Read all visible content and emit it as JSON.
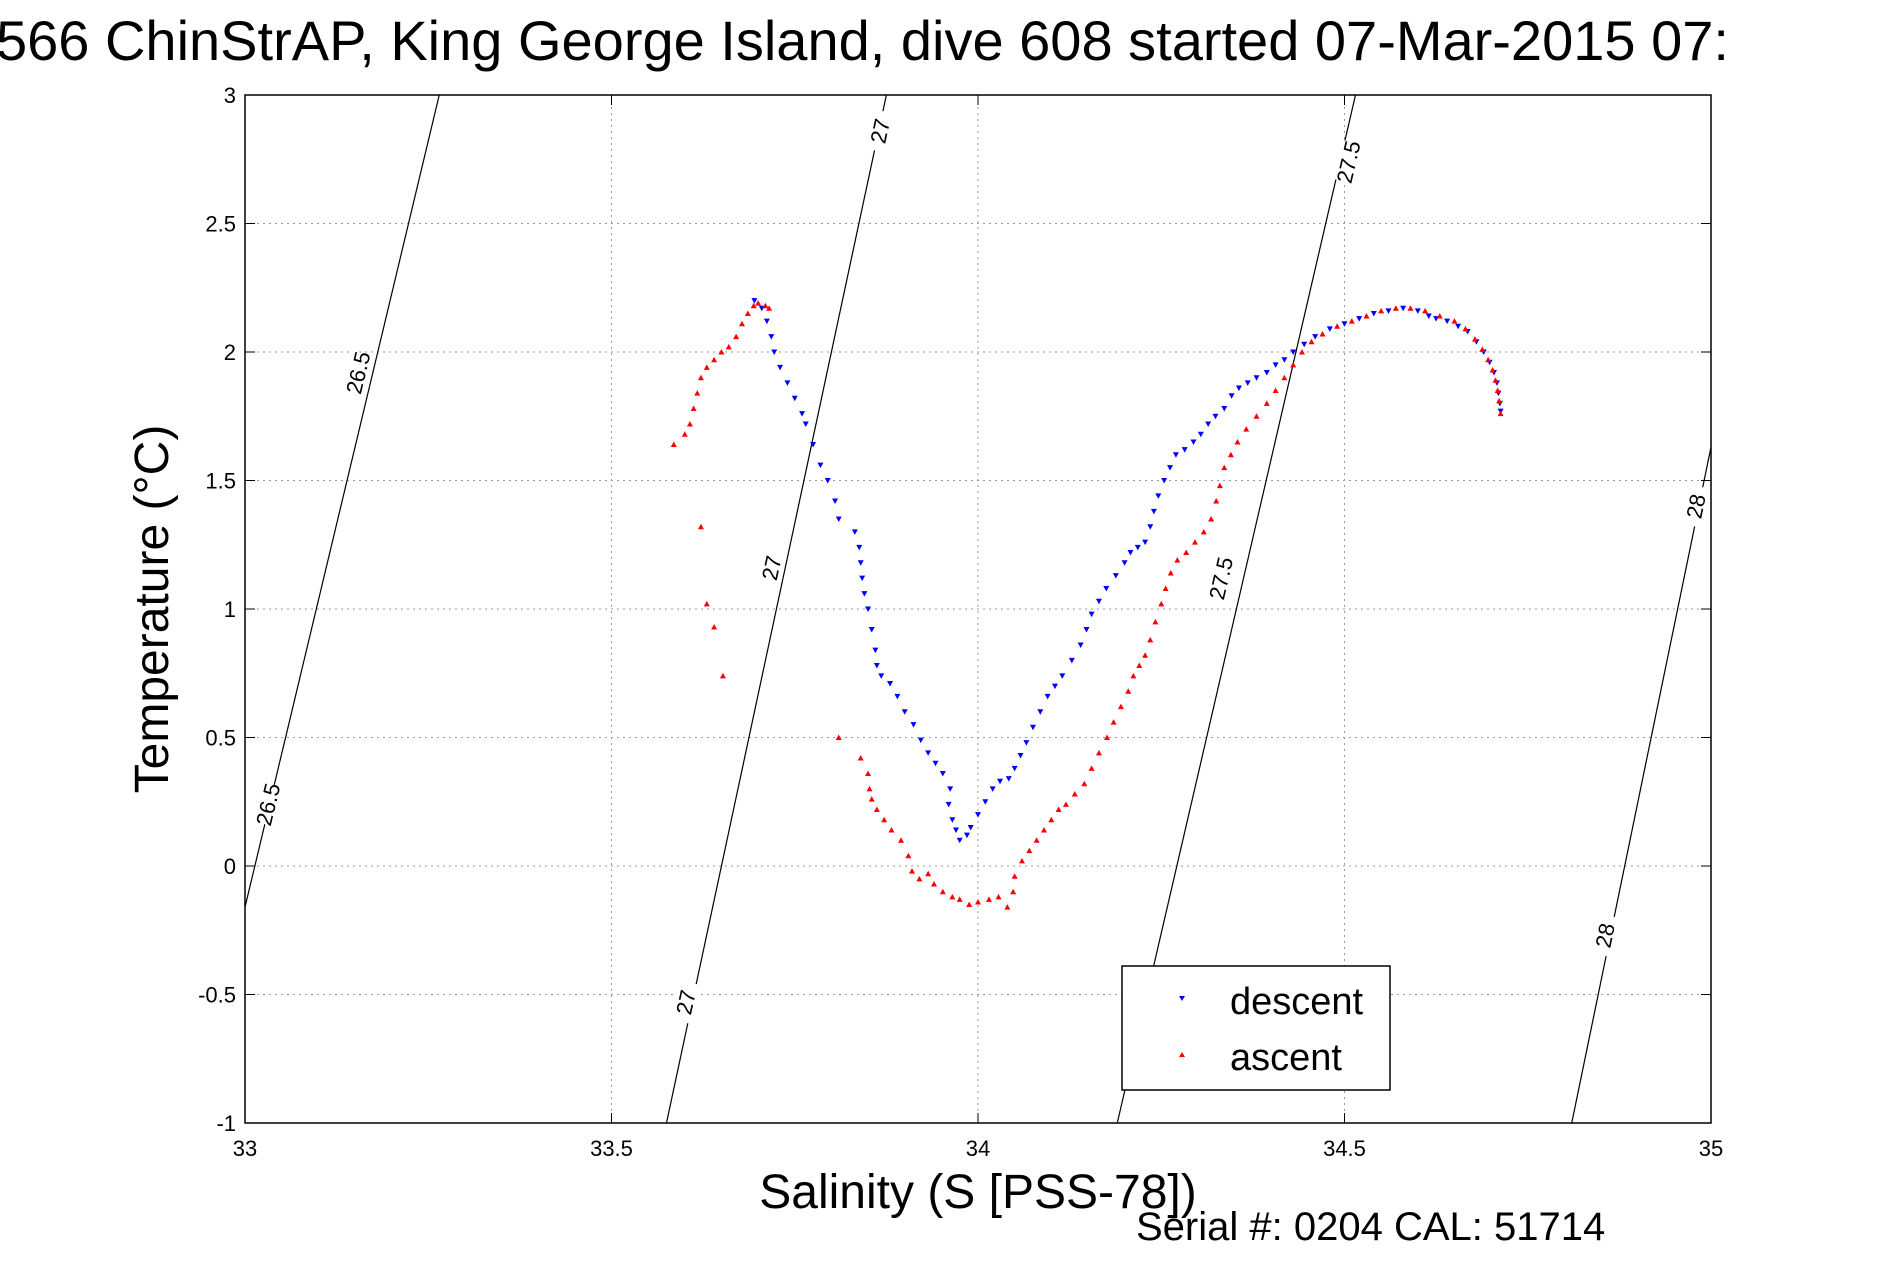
{
  "chart_data": {
    "type": "scatter",
    "title": "566 ChinStrAP, King George Island, dive 608 started 07-Mar-2015 07:",
    "xlabel": "Salinity (S [PSS-78])",
    "ylabel": "Temperature (°C)",
    "xlim": [
      33,
      35
    ],
    "ylim": [
      -1,
      3
    ],
    "xticks": [
      "33",
      "33.5",
      "34",
      "34.5",
      "35"
    ],
    "yticks": [
      "-1",
      "-0.5",
      "0",
      "0.5",
      "1",
      "1.5",
      "2",
      "2.5",
      "3"
    ],
    "grid": true,
    "legend_position": "bottom-right",
    "footer": "Serial #: 0204  CAL: 51714",
    "contours": [
      {
        "level": "26.5",
        "points": [
          [
            33.0,
            -0.16
          ],
          [
            33.265,
            3.0
          ]
        ],
        "labels": [
          [
            33.154,
            1.92
          ],
          [
            33.031,
            0.24
          ]
        ]
      },
      {
        "level": "27",
        "points": [
          [
            33.575,
            -1.0
          ],
          [
            33.875,
            3.0
          ]
        ],
        "labels": [
          [
            33.866,
            2.86
          ],
          [
            33.718,
            1.16
          ],
          [
            33.601,
            -0.53
          ]
        ]
      },
      {
        "level": "27.5",
        "points": [
          [
            34.19,
            -1.0
          ],
          [
            34.515,
            3.0
          ]
        ],
        "labels": [
          [
            34.505,
            2.74
          ],
          [
            34.331,
            1.12
          ]
        ]
      },
      {
        "level": "28",
        "points": [
          [
            34.81,
            -1.0
          ],
          [
            35.0,
            1.63
          ]
        ],
        "labels": [
          [
            34.979,
            1.4
          ],
          [
            34.855,
            -0.27
          ]
        ]
      }
    ],
    "series": [
      {
        "name": "descent",
        "color": "#0000ff",
        "marker": "triangle-down",
        "points": [
          [
            33.695,
            2.2
          ],
          [
            33.705,
            2.17
          ],
          [
            33.712,
            2.12
          ],
          [
            33.718,
            2.06
          ],
          [
            33.722,
            2.0
          ],
          [
            33.73,
            1.94
          ],
          [
            33.74,
            1.88
          ],
          [
            33.75,
            1.82
          ],
          [
            33.76,
            1.76
          ],
          [
            33.765,
            1.72
          ],
          [
            33.775,
            1.64
          ],
          [
            33.785,
            1.56
          ],
          [
            33.795,
            1.5
          ],
          [
            33.805,
            1.42
          ],
          [
            33.81,
            1.35
          ],
          [
            33.832,
            1.3
          ],
          [
            33.838,
            1.24
          ],
          [
            33.84,
            1.18
          ],
          [
            33.842,
            1.12
          ],
          [
            33.845,
            1.06
          ],
          [
            33.85,
            1.0
          ],
          [
            33.855,
            0.92
          ],
          [
            33.86,
            0.84
          ],
          [
            33.862,
            0.78
          ],
          [
            33.868,
            0.74
          ],
          [
            33.88,
            0.71
          ],
          [
            33.89,
            0.66
          ],
          [
            33.9,
            0.6
          ],
          [
            33.912,
            0.55
          ],
          [
            33.922,
            0.49
          ],
          [
            33.932,
            0.44
          ],
          [
            33.942,
            0.4
          ],
          [
            33.952,
            0.36
          ],
          [
            33.962,
            0.3
          ],
          [
            33.96,
            0.24
          ],
          [
            33.965,
            0.18
          ],
          [
            33.97,
            0.14
          ],
          [
            33.975,
            0.1
          ],
          [
            33.985,
            0.12
          ],
          [
            33.99,
            0.15
          ],
          [
            34.0,
            0.2
          ],
          [
            34.01,
            0.25
          ],
          [
            34.02,
            0.3
          ],
          [
            34.03,
            0.33
          ],
          [
            34.042,
            0.34
          ],
          [
            34.05,
            0.38
          ],
          [
            34.058,
            0.43
          ],
          [
            34.066,
            0.48
          ],
          [
            34.075,
            0.54
          ],
          [
            34.085,
            0.6
          ],
          [
            34.095,
            0.66
          ],
          [
            34.105,
            0.7
          ],
          [
            34.115,
            0.74
          ],
          [
            34.128,
            0.8
          ],
          [
            34.14,
            0.86
          ],
          [
            34.148,
            0.92
          ],
          [
            34.155,
            0.98
          ],
          [
            34.165,
            1.03
          ],
          [
            34.175,
            1.08
          ],
          [
            34.188,
            1.13
          ],
          [
            34.2,
            1.18
          ],
          [
            34.208,
            1.22
          ],
          [
            34.218,
            1.24
          ],
          [
            34.228,
            1.26
          ],
          [
            34.235,
            1.32
          ],
          [
            34.24,
            1.38
          ],
          [
            34.246,
            1.44
          ],
          [
            34.254,
            1.5
          ],
          [
            34.262,
            1.55
          ],
          [
            34.27,
            1.6
          ],
          [
            34.282,
            1.62
          ],
          [
            34.294,
            1.65
          ],
          [
            34.304,
            1.68
          ],
          [
            34.314,
            1.72
          ],
          [
            34.324,
            1.75
          ],
          [
            34.336,
            1.78
          ],
          [
            34.346,
            1.83
          ],
          [
            34.356,
            1.86
          ],
          [
            34.368,
            1.88
          ],
          [
            34.38,
            1.9
          ],
          [
            34.394,
            1.92
          ],
          [
            34.406,
            1.95
          ],
          [
            34.418,
            1.97
          ],
          [
            34.43,
            2.0
          ],
          [
            34.445,
            2.03
          ],
          [
            34.46,
            2.06
          ],
          [
            34.48,
            2.09
          ],
          [
            34.5,
            2.11
          ],
          [
            34.52,
            2.13
          ],
          [
            34.54,
            2.15
          ],
          [
            34.56,
            2.16
          ],
          [
            34.58,
            2.17
          ],
          [
            34.6,
            2.16
          ],
          [
            34.615,
            2.14
          ],
          [
            34.625,
            2.13
          ],
          [
            34.64,
            2.12
          ],
          [
            34.655,
            2.1
          ],
          [
            34.668,
            2.08
          ],
          [
            34.68,
            2.04
          ],
          [
            34.69,
            2.0
          ],
          [
            34.698,
            1.96
          ],
          [
            34.704,
            1.92
          ],
          [
            34.708,
            1.88
          ],
          [
            34.71,
            1.84
          ],
          [
            34.712,
            1.8
          ],
          [
            34.713,
            1.77
          ]
        ]
      },
      {
        "name": "ascent",
        "color": "#ff0000",
        "marker": "triangle-up",
        "points": [
          [
            33.585,
            1.64
          ],
          [
            33.6,
            1.68
          ],
          [
            33.607,
            1.72
          ],
          [
            33.612,
            1.78
          ],
          [
            33.617,
            1.84
          ],
          [
            33.622,
            1.9
          ],
          [
            33.63,
            1.94
          ],
          [
            33.64,
            1.97
          ],
          [
            33.65,
            2.0
          ],
          [
            33.66,
            2.02
          ],
          [
            33.67,
            2.06
          ],
          [
            33.678,
            2.11
          ],
          [
            33.686,
            2.15
          ],
          [
            33.694,
            2.18
          ],
          [
            33.7,
            2.19
          ],
          [
            33.71,
            2.18
          ],
          [
            33.715,
            2.17
          ],
          [
            33.622,
            1.32
          ],
          [
            33.63,
            1.02
          ],
          [
            33.64,
            0.93
          ],
          [
            33.652,
            0.74
          ],
          [
            33.81,
            0.5
          ],
          [
            33.84,
            0.42
          ],
          [
            33.85,
            0.36
          ],
          [
            33.852,
            0.3
          ],
          [
            33.855,
            0.26
          ],
          [
            33.862,
            0.22
          ],
          [
            33.872,
            0.18
          ],
          [
            33.882,
            0.14
          ],
          [
            33.895,
            0.1
          ],
          [
            33.905,
            0.04
          ],
          [
            33.91,
            -0.02
          ],
          [
            33.92,
            -0.05
          ],
          [
            33.932,
            -0.03
          ],
          [
            33.94,
            -0.07
          ],
          [
            33.952,
            -0.1
          ],
          [
            33.965,
            -0.12
          ],
          [
            33.975,
            -0.13
          ],
          [
            33.988,
            -0.15
          ],
          [
            34.0,
            -0.14
          ],
          [
            34.015,
            -0.13
          ],
          [
            34.028,
            -0.12
          ],
          [
            34.04,
            -0.16
          ],
          [
            34.048,
            -0.1
          ],
          [
            34.05,
            -0.04
          ],
          [
            34.06,
            0.02
          ],
          [
            34.07,
            0.06
          ],
          [
            34.08,
            0.1
          ],
          [
            34.09,
            0.14
          ],
          [
            34.1,
            0.18
          ],
          [
            34.11,
            0.22
          ],
          [
            34.12,
            0.24
          ],
          [
            34.132,
            0.28
          ],
          [
            34.145,
            0.32
          ],
          [
            34.155,
            0.38
          ],
          [
            34.165,
            0.44
          ],
          [
            34.176,
            0.5
          ],
          [
            34.185,
            0.56
          ],
          [
            34.195,
            0.62
          ],
          [
            34.205,
            0.68
          ],
          [
            34.212,
            0.74
          ],
          [
            34.22,
            0.78
          ],
          [
            34.228,
            0.82
          ],
          [
            34.235,
            0.88
          ],
          [
            34.242,
            0.95
          ],
          [
            34.25,
            1.02
          ],
          [
            34.256,
            1.08
          ],
          [
            34.263,
            1.14
          ],
          [
            34.272,
            1.19
          ],
          [
            34.284,
            1.22
          ],
          [
            34.296,
            1.26
          ],
          [
            34.308,
            1.3
          ],
          [
            34.318,
            1.35
          ],
          [
            34.325,
            1.42
          ],
          [
            34.33,
            1.48
          ],
          [
            34.336,
            1.55
          ],
          [
            34.345,
            1.6
          ],
          [
            34.354,
            1.65
          ],
          [
            34.366,
            1.7
          ],
          [
            34.38,
            1.75
          ],
          [
            34.394,
            1.8
          ],
          [
            34.406,
            1.85
          ],
          [
            34.418,
            1.9
          ],
          [
            34.43,
            1.95
          ],
          [
            34.442,
            2.0
          ],
          [
            34.455,
            2.04
          ],
          [
            34.47,
            2.07
          ],
          [
            34.49,
            2.1
          ],
          [
            34.51,
            2.12
          ],
          [
            34.53,
            2.14
          ],
          [
            34.55,
            2.16
          ],
          [
            34.57,
            2.17
          ],
          [
            34.59,
            2.17
          ],
          [
            34.61,
            2.16
          ],
          [
            34.63,
            2.14
          ],
          [
            34.65,
            2.12
          ],
          [
            34.665,
            2.09
          ],
          [
            34.678,
            2.05
          ],
          [
            34.688,
            2.01
          ],
          [
            34.696,
            1.97
          ],
          [
            34.702,
            1.93
          ],
          [
            34.706,
            1.89
          ],
          [
            34.709,
            1.85
          ],
          [
            34.711,
            1.81
          ],
          [
            34.713,
            1.76
          ]
        ]
      }
    ]
  }
}
